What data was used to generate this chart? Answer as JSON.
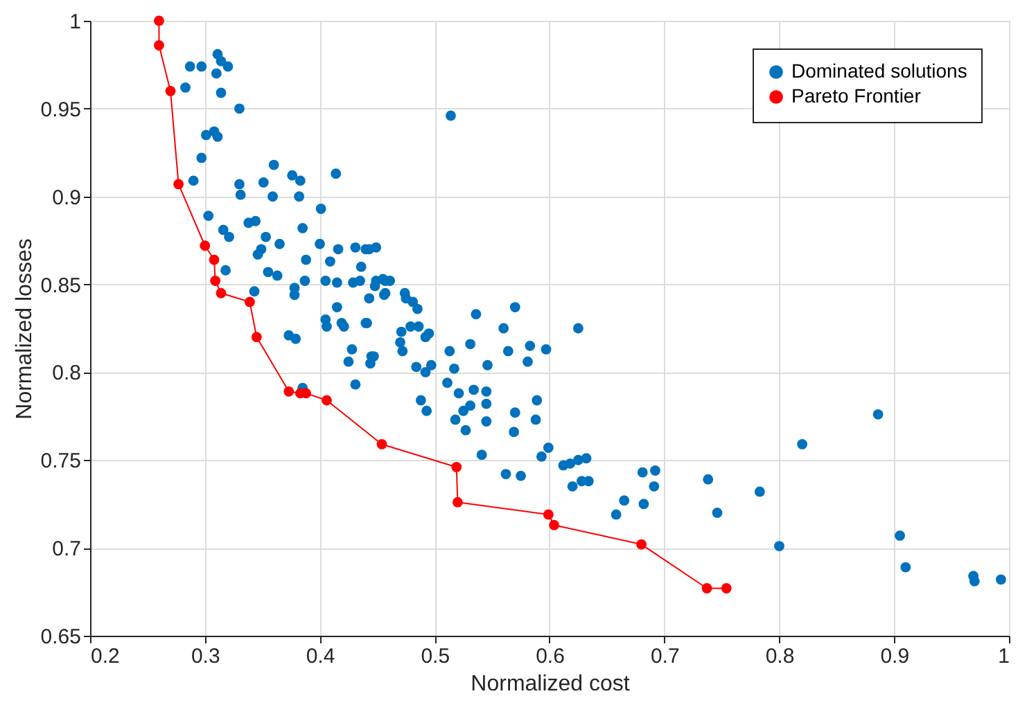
{
  "chart_data": {
    "type": "scatter",
    "xlabel": "Normalized cost",
    "ylabel": "Normalized losses",
    "xlim": [
      0.2,
      1.0
    ],
    "ylim": [
      0.65,
      1.0
    ],
    "xticks": [
      0.2,
      0.3,
      0.4,
      0.5,
      0.6,
      0.7,
      0.8,
      0.9,
      1
    ],
    "yticks": [
      0.65,
      0.7,
      0.75,
      0.8,
      0.85,
      0.9,
      0.95,
      1
    ],
    "grid": true,
    "legend": "top right",
    "series": [
      {
        "name": "Dominated solutions",
        "color": "#0072bd",
        "marker": "circle",
        "x": [
          0.287,
          0.297,
          0.311,
          0.314,
          0.32,
          0.31,
          0.283,
          0.314,
          0.33,
          0.301,
          0.308,
          0.311,
          0.297,
          0.29,
          0.36,
          0.376,
          0.383,
          0.414,
          0.33,
          0.331,
          0.351,
          0.359,
          0.382,
          0.401,
          0.303,
          0.316,
          0.321,
          0.338,
          0.344,
          0.353,
          0.385,
          0.365,
          0.346,
          0.349,
          0.318,
          0.355,
          0.363,
          0.388,
          0.4,
          0.409,
          0.416,
          0.431,
          0.44,
          0.449,
          0.436,
          0.378,
          0.378,
          0.387,
          0.405,
          0.415,
          0.429,
          0.435,
          0.449,
          0.457,
          0.443,
          0.456,
          0.415,
          0.405,
          0.343,
          0.443,
          0.455,
          0.461,
          0.448,
          0.457,
          0.474,
          0.475,
          0.481,
          0.485,
          0.441,
          0.471,
          0.479,
          0.486,
          0.495,
          0.492,
          0.47,
          0.472,
          0.447,
          0.444,
          0.484,
          0.492,
          0.497,
          0.513,
          0.517,
          0.511,
          0.521,
          0.488,
          0.493,
          0.531,
          0.536,
          0.546,
          0.534,
          0.545,
          0.531,
          0.525,
          0.545,
          0.518,
          0.527,
          0.545,
          0.56,
          0.57,
          0.564,
          0.583,
          0.597,
          0.581,
          0.625,
          0.589,
          0.57,
          0.588,
          0.569,
          0.599,
          0.514,
          0.681,
          0.692,
          0.691,
          0.682,
          0.738,
          0.746,
          0.783,
          0.8,
          0.82,
          0.886,
          0.905,
          0.91,
          0.969,
          0.97,
          0.993,
          0.625,
          0.618,
          0.632,
          0.628,
          0.634,
          0.62,
          0.612,
          0.593,
          0.562,
          0.575,
          0.665,
          0.658,
          0.541,
          0.373,
          0.379,
          0.431,
          0.425,
          0.428,
          0.406,
          0.419,
          0.421,
          0.44,
          0.445,
          0.385
        ],
        "values": [
          0.974,
          0.974,
          0.981,
          0.977,
          0.974,
          0.97,
          0.962,
          0.959,
          0.95,
          0.935,
          0.937,
          0.934,
          0.922,
          0.909,
          0.918,
          0.912,
          0.909,
          0.913,
          0.907,
          0.901,
          0.908,
          0.9,
          0.9,
          0.893,
          0.889,
          0.881,
          0.877,
          0.885,
          0.886,
          0.877,
          0.882,
          0.873,
          0.867,
          0.87,
          0.858,
          0.857,
          0.855,
          0.864,
          0.873,
          0.863,
          0.87,
          0.871,
          0.87,
          0.871,
          0.86,
          0.848,
          0.844,
          0.852,
          0.852,
          0.851,
          0.851,
          0.852,
          0.852,
          0.852,
          0.842,
          0.844,
          0.837,
          0.83,
          0.846,
          0.87,
          0.853,
          0.852,
          0.849,
          0.845,
          0.845,
          0.842,
          0.84,
          0.836,
          0.828,
          0.823,
          0.826,
          0.826,
          0.822,
          0.82,
          0.817,
          0.812,
          0.809,
          0.805,
          0.803,
          0.8,
          0.804,
          0.812,
          0.802,
          0.794,
          0.788,
          0.784,
          0.778,
          0.816,
          0.833,
          0.804,
          0.79,
          0.789,
          0.781,
          0.778,
          0.782,
          0.773,
          0.767,
          0.772,
          0.825,
          0.837,
          0.812,
          0.815,
          0.813,
          0.806,
          0.825,
          0.784,
          0.777,
          0.773,
          0.766,
          0.757,
          0.946,
          0.743,
          0.744,
          0.735,
          0.725,
          0.739,
          0.72,
          0.732,
          0.701,
          0.759,
          0.776,
          0.707,
          0.689,
          0.684,
          0.681,
          0.682,
          0.75,
          0.748,
          0.751,
          0.738,
          0.738,
          0.735,
          0.747,
          0.752,
          0.742,
          0.741,
          0.727,
          0.719,
          0.753,
          0.821,
          0.819,
          0.793,
          0.806,
          0.813,
          0.826,
          0.828,
          0.826,
          0.828,
          0.809,
          0.791
        ]
      },
      {
        "name": "Pareto Frontier",
        "type": "line",
        "color": "#ff0000",
        "marker": "circle",
        "x": [
          0.26,
          0.26,
          0.27,
          0.277,
          0.3,
          0.308,
          0.309,
          0.314,
          0.339,
          0.345,
          0.373,
          0.383,
          0.388,
          0.406,
          0.454,
          0.519,
          0.52,
          0.599,
          0.604,
          0.68,
          0.737,
          0.754
        ],
        "values": [
          1.0,
          0.986,
          0.96,
          0.907,
          0.872,
          0.864,
          0.852,
          0.845,
          0.84,
          0.82,
          0.789,
          0.788,
          0.788,
          0.784,
          0.759,
          0.746,
          0.726,
          0.719,
          0.713,
          0.702,
          0.677,
          0.677
        ]
      }
    ]
  }
}
